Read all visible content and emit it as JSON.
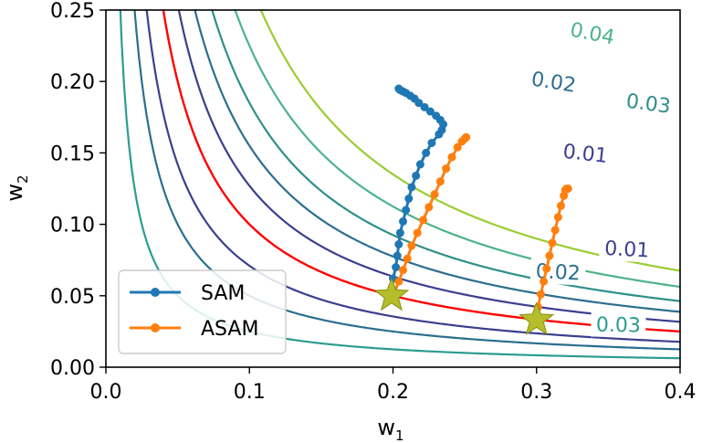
{
  "chart_data": {
    "type": "line",
    "title": "",
    "xlabel": {
      "base": "w",
      "sub": "1"
    },
    "ylabel": {
      "base": "w",
      "sub": "2"
    },
    "xlim": [
      0.0,
      0.4
    ],
    "ylim": [
      0.0,
      0.25
    ],
    "xticks": [
      "0.0",
      "0.1",
      "0.2",
      "0.3",
      "0.4"
    ],
    "yticks": [
      "0.00",
      "0.05",
      "0.10",
      "0.15",
      "0.20",
      "0.25"
    ],
    "xtick_values": [
      0.0,
      0.1,
      0.2,
      0.3,
      0.4
    ],
    "ytick_values": [
      0.0,
      0.05,
      0.1,
      0.15,
      0.2,
      0.25
    ],
    "grid": false,
    "legend": {
      "placement": "lower-left",
      "entries": [
        {
          "label": "SAM",
          "color": "#1f77b4"
        },
        {
          "label": "ASAM",
          "color": "#ff7f0e"
        }
      ]
    },
    "contours": [
      {
        "k": 0.0025,
        "color": "#2a9d8f",
        "label": "0.03",
        "label_at": {
          "x": 0.357,
          "y": 0.03
        }
      },
      {
        "k": 0.005,
        "color": "#2c6e8f",
        "label": "0.02",
        "label_at": {
          "x": 0.315,
          "y": 0.067
        }
      },
      {
        "k": 0.0071,
        "color": "#3b3f8f",
        "label": "0.01",
        "label_at": {
          "x": 0.363,
          "y": 0.083
        }
      },
      {
        "k": 0.01,
        "color": "#ff0000",
        "label": ""
      },
      {
        "k": 0.0127,
        "color": "#3b3f8f",
        "label": "0.01",
        "label_at": {
          "x": 0.334,
          "y": 0.15
        }
      },
      {
        "k": 0.0155,
        "color": "#2c6e8f",
        "label": "0.02",
        "label_at": {
          "x": 0.312,
          "y": 0.2
        }
      },
      {
        "k": 0.0185,
        "color": "#2f8f8a",
        "label": "0.03",
        "label_at": {
          "x": 0.378,
          "y": 0.185
        }
      },
      {
        "k": 0.0225,
        "color": "#4db38a",
        "label": "0.04",
        "label_at": {
          "x": 0.339,
          "y": 0.234
        }
      },
      {
        "k": 0.027,
        "color": "#9acd32",
        "label": ""
      }
    ],
    "series": [
      {
        "name": "SAM",
        "color": "#1f77b4",
        "points": [
          [
            0.199,
            0.055
          ],
          [
            0.2,
            0.062
          ],
          [
            0.202,
            0.07
          ],
          [
            0.203,
            0.078
          ],
          [
            0.204,
            0.086
          ],
          [
            0.205,
            0.094
          ],
          [
            0.207,
            0.102
          ],
          [
            0.209,
            0.11
          ],
          [
            0.211,
            0.118
          ],
          [
            0.213,
            0.126
          ],
          [
            0.216,
            0.134
          ],
          [
            0.219,
            0.142
          ],
          [
            0.223,
            0.15
          ],
          [
            0.227,
            0.157
          ],
          [
            0.232,
            0.163
          ],
          [
            0.234,
            0.166
          ],
          [
            0.235,
            0.17
          ],
          [
            0.233,
            0.173
          ],
          [
            0.23,
            0.176
          ],
          [
            0.226,
            0.179
          ],
          [
            0.222,
            0.182
          ],
          [
            0.218,
            0.185
          ],
          [
            0.215,
            0.188
          ],
          [
            0.212,
            0.19
          ],
          [
            0.209,
            0.192
          ],
          [
            0.207,
            0.193
          ],
          [
            0.205,
            0.194
          ],
          [
            0.204,
            0.195
          ]
        ]
      },
      {
        "name": "ASAM",
        "color": "#ff7f0e",
        "points": [
          [
            0.201,
            0.052
          ],
          [
            0.204,
            0.06
          ],
          [
            0.207,
            0.068
          ],
          [
            0.21,
            0.076
          ],
          [
            0.213,
            0.085
          ],
          [
            0.217,
            0.094
          ],
          [
            0.221,
            0.103
          ],
          [
            0.225,
            0.112
          ],
          [
            0.229,
            0.121
          ],
          [
            0.233,
            0.13
          ],
          [
            0.237,
            0.139
          ],
          [
            0.241,
            0.147
          ],
          [
            0.245,
            0.154
          ],
          [
            0.248,
            0.158
          ],
          [
            0.25,
            0.16
          ],
          [
            0.251,
            0.161
          ]
        ]
      },
      {
        "name": "ASAM",
        "color": "#ff7f0e",
        "points": [
          [
            0.3,
            0.034
          ],
          [
            0.301,
            0.042
          ],
          [
            0.303,
            0.051
          ],
          [
            0.305,
            0.06
          ],
          [
            0.307,
            0.069
          ],
          [
            0.309,
            0.078
          ],
          [
            0.311,
            0.087
          ],
          [
            0.313,
            0.096
          ],
          [
            0.315,
            0.105
          ],
          [
            0.317,
            0.113
          ],
          [
            0.319,
            0.12
          ],
          [
            0.32,
            0.124
          ],
          [
            0.321,
            0.125
          ],
          [
            0.322,
            0.125
          ]
        ]
      }
    ],
    "start_markers": [
      {
        "x": 0.199,
        "y": 0.05,
        "color": "#b5bd2a"
      },
      {
        "x": 0.3,
        "y": 0.033,
        "color": "#b5bd2a"
      }
    ]
  }
}
